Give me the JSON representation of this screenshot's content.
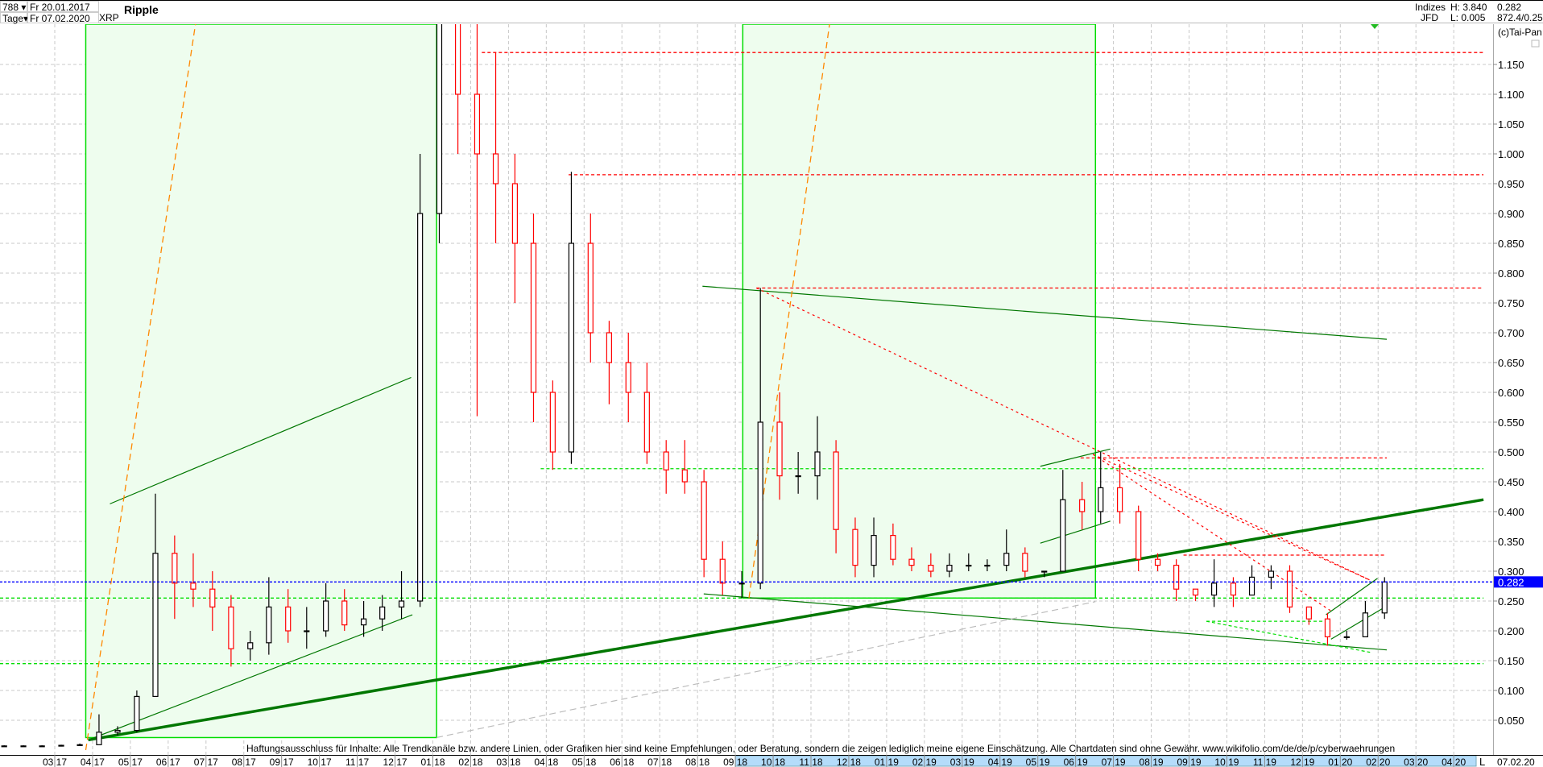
{
  "header": {
    "bars_count": "788",
    "interval": "Tage",
    "date_from": "Fr 20.01.2017",
    "date_to": "Fr 07.02.2020",
    "symbol": "XRP",
    "title": "Ripple",
    "group": "Indizes",
    "source": "JFD",
    "high": "H: 3.840",
    "low": "L: 0.005",
    "last": "0.282",
    "extra": "872.4/0.25",
    "copyright": "(c)Tai-Pan"
  },
  "footer": {
    "disclaimer": "Haftungsausschluss für Inhalte: Alle Trendkanäle bzw. andere Linien, oder Grafiken hier sind keine Empfehlungen, oder Beratung, sondern die zeigen lediglich meine eigene Einschätzung. Alle Chartdaten sind ohne Gewähr.  www.wikifolio.com/de/de/p/cyberwaehrungen",
    "log_toggle": "L",
    "axis_date": "07.02.20"
  },
  "chart_data": {
    "type": "candlestick",
    "title": "Ripple",
    "ylim": [
      0,
      1.2176
    ],
    "y_ticks": [
      "0.050",
      "0.100",
      "0.150",
      "0.200",
      "0.250",
      "0.300",
      "0.350",
      "0.400",
      "0.450",
      "0.500",
      "0.550",
      "0.600",
      "0.650",
      "0.700",
      "0.750",
      "0.800",
      "0.850",
      "0.900",
      "0.950",
      "1.000",
      "1.050",
      "1.100",
      "1.150"
    ],
    "x_ticks": [
      "03 17",
      "04 17",
      "05 17",
      "06 17",
      "07 17",
      "08 17",
      "09 17",
      "10 17",
      "11 17",
      "12 17",
      "01 18",
      "02 18",
      "03 18",
      "04 18",
      "05 18",
      "06 18",
      "07 18",
      "08 18",
      "09 18",
      "10 18",
      "11 18",
      "12 18",
      "01 19",
      "02 19",
      "03 19",
      "04 19",
      "05 19",
      "06 19",
      "07 19",
      "08 19",
      "09 19",
      "10 19",
      "11 19",
      "12 19",
      "01 20",
      "02 20",
      "03 20",
      "04 20"
    ],
    "grid": true,
    "last_price": 0.282,
    "colors": {
      "up": "#000000",
      "down": "#ff0000",
      "last_price": "#0000ff",
      "zone": "#eefdee",
      "zone_border": "#00dd00",
      "trend": "#007700",
      "resistance": "#ff0000",
      "support": "#00dd00",
      "fan": "#ff8800",
      "price_label_bg": "#0000ff",
      "axis_highlight": "#b4dcfa"
    },
    "ohlc_columns": [
      "date",
      "open",
      "high",
      "low",
      "close"
    ],
    "ohlc": [
      [
        "2017-01-16",
        0.007,
        0.008,
        0.006,
        0.007
      ],
      [
        "2017-02-01",
        0.007,
        0.008,
        0.006,
        0.007
      ],
      [
        "2017-02-16",
        0.007,
        0.008,
        0.006,
        0.007
      ],
      [
        "2017-03-01",
        0.007,
        0.009,
        0.006,
        0.008
      ],
      [
        "2017-03-16",
        0.008,
        0.011,
        0.007,
        0.009
      ],
      [
        "2017-04-01",
        0.009,
        0.06,
        0.009,
        0.03
      ],
      [
        "2017-04-16",
        0.03,
        0.04,
        0.025,
        0.033
      ],
      [
        "2017-05-01",
        0.033,
        0.1,
        0.03,
        0.09
      ],
      [
        "2017-05-16",
        0.09,
        0.43,
        0.09,
        0.33
      ],
      [
        "2017-06-01",
        0.33,
        0.36,
        0.22,
        0.28
      ],
      [
        "2017-06-16",
        0.28,
        0.33,
        0.24,
        0.27
      ],
      [
        "2017-07-01",
        0.27,
        0.3,
        0.2,
        0.24
      ],
      [
        "2017-07-16",
        0.24,
        0.26,
        0.14,
        0.17
      ],
      [
        "2017-08-01",
        0.17,
        0.2,
        0.15,
        0.18
      ],
      [
        "2017-08-16",
        0.18,
        0.29,
        0.16,
        0.24
      ],
      [
        "2017-09-01",
        0.24,
        0.27,
        0.18,
        0.2
      ],
      [
        "2017-09-16",
        0.2,
        0.24,
        0.17,
        0.2
      ],
      [
        "2017-10-01",
        0.2,
        0.28,
        0.19,
        0.25
      ],
      [
        "2017-10-16",
        0.25,
        0.27,
        0.2,
        0.21
      ],
      [
        "2017-11-01",
        0.21,
        0.25,
        0.19,
        0.22
      ],
      [
        "2017-11-16",
        0.22,
        0.26,
        0.2,
        0.24
      ],
      [
        "2017-12-01",
        0.24,
        0.3,
        0.22,
        0.25
      ],
      [
        "2017-12-16",
        0.25,
        1.0,
        0.24,
        0.9
      ],
      [
        "2018-01-01",
        0.9,
        3.84,
        0.85,
        2.4
      ],
      [
        "2018-01-16",
        2.4,
        2.6,
        1.0,
        1.1
      ],
      [
        "2018-02-01",
        1.1,
        1.3,
        0.56,
        1.0
      ],
      [
        "2018-02-16",
        1.0,
        1.17,
        0.85,
        0.95
      ],
      [
        "2018-03-01",
        0.95,
        1.0,
        0.75,
        0.85
      ],
      [
        "2018-03-16",
        0.85,
        0.9,
        0.55,
        0.6
      ],
      [
        "2018-04-01",
        0.6,
        0.62,
        0.47,
        0.5
      ],
      [
        "2018-04-16",
        0.5,
        0.97,
        0.48,
        0.85
      ],
      [
        "2018-05-01",
        0.85,
        0.9,
        0.65,
        0.7
      ],
      [
        "2018-05-16",
        0.7,
        0.72,
        0.58,
        0.65
      ],
      [
        "2018-06-01",
        0.65,
        0.7,
        0.55,
        0.6
      ],
      [
        "2018-06-16",
        0.6,
        0.65,
        0.48,
        0.5
      ],
      [
        "2018-07-01",
        0.5,
        0.52,
        0.43,
        0.47
      ],
      [
        "2018-07-16",
        0.47,
        0.52,
        0.43,
        0.45
      ],
      [
        "2018-08-01",
        0.45,
        0.47,
        0.29,
        0.32
      ],
      [
        "2018-08-16",
        0.32,
        0.35,
        0.26,
        0.28
      ],
      [
        "2018-09-01",
        0.28,
        0.3,
        0.255,
        0.28
      ],
      [
        "2018-09-16",
        0.28,
        0.775,
        0.27,
        0.55
      ],
      [
        "2018-10-01",
        0.55,
        0.6,
        0.42,
        0.46
      ],
      [
        "2018-10-16",
        0.46,
        0.5,
        0.43,
        0.46
      ],
      [
        "2018-11-01",
        0.46,
        0.56,
        0.42,
        0.5
      ],
      [
        "2018-11-16",
        0.5,
        0.52,
        0.33,
        0.37
      ],
      [
        "2018-12-01",
        0.37,
        0.39,
        0.29,
        0.31
      ],
      [
        "2018-12-16",
        0.31,
        0.39,
        0.29,
        0.36
      ],
      [
        "2019-01-01",
        0.36,
        0.38,
        0.31,
        0.32
      ],
      [
        "2019-01-16",
        0.32,
        0.34,
        0.3,
        0.31
      ],
      [
        "2019-02-01",
        0.31,
        0.33,
        0.29,
        0.3
      ],
      [
        "2019-02-16",
        0.3,
        0.33,
        0.29,
        0.31
      ],
      [
        "2019-03-01",
        0.31,
        0.33,
        0.3,
        0.31
      ],
      [
        "2019-03-16",
        0.31,
        0.32,
        0.3,
        0.31
      ],
      [
        "2019-04-01",
        0.31,
        0.37,
        0.3,
        0.33
      ],
      [
        "2019-04-16",
        0.33,
        0.34,
        0.29,
        0.3
      ],
      [
        "2019-05-01",
        0.3,
        0.3,
        0.29,
        0.3
      ],
      [
        "2019-05-16",
        0.3,
        0.47,
        0.3,
        0.42
      ],
      [
        "2019-06-01",
        0.42,
        0.45,
        0.37,
        0.4
      ],
      [
        "2019-06-16",
        0.4,
        0.5,
        0.38,
        0.44
      ],
      [
        "2019-07-01",
        0.44,
        0.48,
        0.38,
        0.4
      ],
      [
        "2019-07-16",
        0.4,
        0.41,
        0.3,
        0.32
      ],
      [
        "2019-08-01",
        0.32,
        0.33,
        0.3,
        0.31
      ],
      [
        "2019-08-16",
        0.31,
        0.32,
        0.25,
        0.27
      ],
      [
        "2019-09-01",
        0.27,
        0.27,
        0.25,
        0.26
      ],
      [
        "2019-09-16",
        0.26,
        0.32,
        0.24,
        0.28
      ],
      [
        "2019-10-01",
        0.28,
        0.29,
        0.24,
        0.26
      ],
      [
        "2019-10-16",
        0.26,
        0.31,
        0.26,
        0.29
      ],
      [
        "2019-11-01",
        0.29,
        0.31,
        0.27,
        0.3
      ],
      [
        "2019-11-16",
        0.3,
        0.31,
        0.23,
        0.24
      ],
      [
        "2019-12-01",
        0.24,
        0.24,
        0.21,
        0.22
      ],
      [
        "2019-12-16",
        0.22,
        0.23,
        0.175,
        0.19
      ],
      [
        "2020-01-01",
        0.19,
        0.2,
        0.185,
        0.19
      ],
      [
        "2020-01-16",
        0.19,
        0.25,
        0.19,
        0.23
      ],
      [
        "2020-02-01",
        0.23,
        0.29,
        0.22,
        0.282
      ]
    ],
    "zones": [
      {
        "from": "2017-03-26",
        "to": "2018-01-04",
        "low": 0.021
      },
      {
        "from": "2018-09-07",
        "to": "2019-06-17",
        "low": 0.255
      }
    ],
    "horizontal_lines": [
      {
        "value": 1.17,
        "from": "2018-02-10",
        "to": "2020-04-25",
        "kind": "resistance"
      },
      {
        "value": 0.965,
        "from": "2018-04-19",
        "to": "2020-04-25",
        "kind": "resistance"
      },
      {
        "value": 0.775,
        "from": "2018-09-18",
        "to": "2020-04-25",
        "kind": "resistance"
      },
      {
        "value": 0.49,
        "from": "2019-06-05",
        "to": "2020-02-08",
        "kind": "resistance"
      },
      {
        "value": 0.327,
        "from": "2019-08-27",
        "to": "2020-02-06",
        "kind": "resistance"
      },
      {
        "value": 0.472,
        "from": "2018-03-27",
        "to": "2020-04-25",
        "kind": "support"
      },
      {
        "value": 0.255,
        "from": "2017-01-16",
        "to": "2020-04-25",
        "kind": "support"
      },
      {
        "value": 0.145,
        "from": "2017-01-16",
        "to": "2020-04-25",
        "kind": "support"
      },
      {
        "value": 0.216,
        "from": "2019-09-15",
        "to": "2019-12-20",
        "kind": "support"
      }
    ],
    "trend_lines": [
      {
        "p1": [
          "2017-03-28",
          0.017
        ],
        "p2": [
          "2020-04-25",
          0.42
        ],
        "kind": "thick"
      },
      {
        "p1": [
          "2017-03-28",
          0.017
        ],
        "p2": [
          "2017-12-15",
          0.227
        ],
        "kind": "thin"
      },
      {
        "p1": [
          "2017-04-15",
          0.413
        ],
        "p2": [
          "2017-12-14",
          0.625
        ],
        "kind": "thin"
      },
      {
        "p1": [
          "2018-08-05",
          0.778
        ],
        "p2": [
          "2020-02-08",
          0.689
        ],
        "kind": "thin"
      },
      {
        "p1": [
          "2018-08-06",
          0.262
        ],
        "p2": [
          "2020-02-08",
          0.168
        ],
        "kind": "thin"
      },
      {
        "p1": [
          "2019-05-03",
          0.476
        ],
        "p2": [
          "2019-06-29",
          0.505
        ],
        "kind": "thin"
      },
      {
        "p1": [
          "2019-05-03",
          0.347
        ],
        "p2": [
          "2019-06-29",
          0.384
        ],
        "kind": "thin"
      },
      {
        "p1": [
          "2019-12-20",
          0.227
        ],
        "p2": [
          "2020-01-31",
          0.288
        ],
        "kind": "thin"
      },
      {
        "p1": [
          "2019-12-24",
          0.186
        ],
        "p2": [
          "2020-02-05",
          0.238
        ],
        "kind": "thin"
      },
      {
        "p1": [
          "2018-09-18",
          0.775
        ],
        "p2": [
          "2020-01-25",
          0.285
        ],
        "kind": "red-dotted"
      },
      {
        "p1": [
          "2019-06-15",
          0.496
        ],
        "p2": [
          "2020-01-25",
          0.285
        ],
        "kind": "red-dotted"
      },
      {
        "p1": [
          "2019-06-15",
          0.496
        ],
        "p2": [
          "2019-12-25",
          0.232
        ],
        "kind": "red-dotted"
      },
      {
        "p1": [
          "2019-09-15",
          0.216
        ],
        "p2": [
          "2020-01-25",
          0.164
        ],
        "kind": "green-dashed"
      },
      {
        "p1": [
          "2018-01-04",
          0.021
        ],
        "p2": [
          "2019-06-17",
          0.249
        ],
        "kind": "gray-dashed"
      },
      {
        "p1": [
          "2017-03-26",
          0.0
        ],
        "p2": [
          "2017-06-23",
          1.2176
        ],
        "kind": "fan"
      },
      {
        "p1": [
          "2018-09-12",
          0.255
        ],
        "p2": [
          "2018-11-16",
          1.2176
        ],
        "kind": "fan"
      }
    ]
  }
}
